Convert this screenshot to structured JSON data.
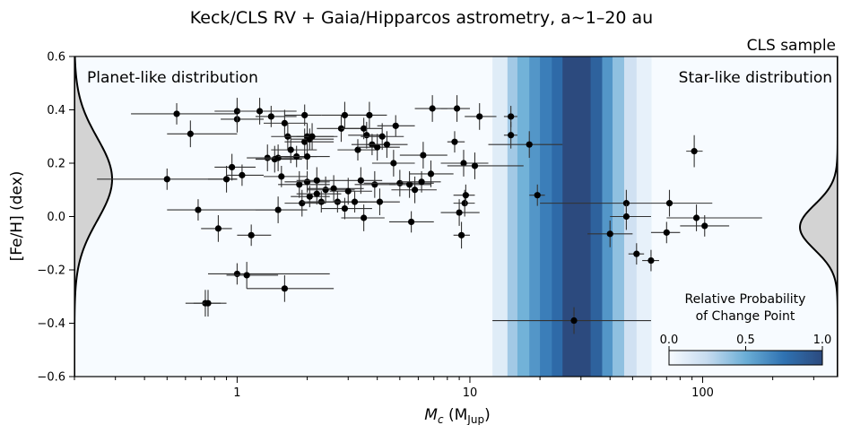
{
  "chart_data": {
    "type": "scatter",
    "title": "Keck/CLS RV + Gaia/Hipparcos astrometry, a∼1–20 au",
    "subtitle": "CLS sample",
    "xlabel_main": "M",
    "xlabel_sub": "c",
    "xlabel_unit_open": " (M",
    "xlabel_unit_sub": "Jup",
    "xlabel_unit_close": ")",
    "ylabel": "[Fe/H] (dex)",
    "xscale": "log",
    "xlim": [
      0.2,
      380
    ],
    "ylim": [
      -0.6,
      0.6
    ],
    "x_ticks": [
      {
        "value": 1,
        "label": "1"
      },
      {
        "value": 10,
        "label": "10"
      },
      {
        "value": 100,
        "label": "100"
      }
    ],
    "y_ticks": [
      {
        "value": 0.6,
        "label": "0.6"
      },
      {
        "value": 0.4,
        "label": "0.4"
      },
      {
        "value": 0.2,
        "label": "0.2"
      },
      {
        "value": 0.0,
        "label": "0.0"
      },
      {
        "value": -0.2,
        "label": "−0.2"
      },
      {
        "value": -0.4,
        "label": "−0.4"
      },
      {
        "value": -0.6,
        "label": "−0.6"
      }
    ],
    "annotations": {
      "left": "Planet-like distribution",
      "right": "Star-like distribution"
    },
    "colorbar": {
      "title_line1": "Relative Probability",
      "title_line2": "of Change Point",
      "ticks": [
        {
          "value": 0.0,
          "label": "0.0"
        },
        {
          "value": 0.5,
          "label": "0.5"
        },
        {
          "value": 1.0,
          "label": "1.0"
        }
      ]
    },
    "change_point_probability": [
      {
        "x0": 12.5,
        "x1": 14.5,
        "p": 0.12
      },
      {
        "x0": 14.5,
        "x1": 16.0,
        "p": 0.35
      },
      {
        "x0": 16.0,
        "x1": 18.0,
        "p": 0.48
      },
      {
        "x0": 18.0,
        "x1": 20.0,
        "p": 0.6
      },
      {
        "x0": 20.0,
        "x1": 22.5,
        "p": 0.7
      },
      {
        "x0": 22.5,
        "x1": 25.0,
        "p": 0.8
      },
      {
        "x0": 25.0,
        "x1": 33.0,
        "p": 1.0
      },
      {
        "x0": 33.0,
        "x1": 37.0,
        "p": 0.85
      },
      {
        "x0": 37.0,
        "x1": 41.0,
        "p": 0.6
      },
      {
        "x0": 41.0,
        "x1": 46.0,
        "p": 0.4
      },
      {
        "x0": 46.0,
        "x1": 52.0,
        "p": 0.2
      },
      {
        "x0": 52.0,
        "x1": 60.0,
        "p": 0.08
      }
    ],
    "distributions": [
      {
        "side": "left",
        "name": "Planet-like distribution",
        "mean": 0.14,
        "sigma": 0.155
      },
      {
        "side": "right",
        "name": "Star-like distribution",
        "mean": -0.04,
        "sigma": 0.085
      }
    ],
    "points": [
      {
        "x": 0.5,
        "y": 0.14,
        "xlo": 0.25,
        "xhi": 1.0,
        "ye": 0.04
      },
      {
        "x": 0.55,
        "y": 0.385,
        "xlo": 0.35,
        "xhi": 1.0,
        "ye": 0.04
      },
      {
        "x": 0.63,
        "y": 0.31,
        "xlo": 0.5,
        "xhi": 1.0,
        "ye": 0.05
      },
      {
        "x": 0.68,
        "y": 0.025,
        "xlo": 0.5,
        "xhi": 1.5,
        "ye": 0.04
      },
      {
        "x": 0.73,
        "y": -0.325,
        "xlo": 0.6,
        "xhi": 0.85,
        "ye": 0.05
      },
      {
        "x": 0.75,
        "y": -0.325,
        "xlo": 0.65,
        "xhi": 0.9,
        "ye": 0.05
      },
      {
        "x": 0.83,
        "y": -0.045,
        "xlo": 0.7,
        "xhi": 0.95,
        "ye": 0.05
      },
      {
        "x": 0.9,
        "y": 0.14,
        "xlo": 0.75,
        "xhi": 1.0,
        "ye": 0.05
      },
      {
        "x": 0.95,
        "y": 0.185,
        "xlo": 0.8,
        "xhi": 1.2,
        "ye": 0.05
      },
      {
        "x": 1.0,
        "y": 0.365,
        "xlo": 0.85,
        "xhi": 1.3,
        "ye": 0.05
      },
      {
        "x": 1.0,
        "y": 0.395,
        "xlo": 0.8,
        "xhi": 1.6,
        "ye": 0.05
      },
      {
        "x": 1.0,
        "y": -0.215,
        "xlo": 0.75,
        "xhi": 2.5,
        "ye": 0.04
      },
      {
        "x": 1.05,
        "y": 0.155,
        "xlo": 0.9,
        "xhi": 1.3,
        "ye": 0.04
      },
      {
        "x": 1.1,
        "y": -0.22,
        "xlo": 0.9,
        "xhi": 1.5,
        "ye": 0.05
      },
      {
        "x": 1.15,
        "y": -0.07,
        "xlo": 1.0,
        "xhi": 1.4,
        "ye": 0.04
      },
      {
        "x": 1.25,
        "y": 0.395,
        "xlo": 1.0,
        "xhi": 1.8,
        "ye": 0.05
      },
      {
        "x": 1.35,
        "y": 0.22,
        "xlo": 1.1,
        "xhi": 1.8,
        "ye": 0.05
      },
      {
        "x": 1.4,
        "y": 0.375,
        "xlo": 1.2,
        "xhi": 1.8,
        "ye": 0.04
      },
      {
        "x": 1.45,
        "y": 0.215,
        "xlo": 1.2,
        "xhi": 1.9,
        "ye": 0.05
      },
      {
        "x": 1.5,
        "y": 0.22,
        "xlo": 1.2,
        "xhi": 2.0,
        "ye": 0.05
      },
      {
        "x": 1.5,
        "y": 0.025,
        "xlo": 1.2,
        "xhi": 2.0,
        "ye": 0.05
      },
      {
        "x": 1.55,
        "y": 0.15,
        "xlo": 1.3,
        "xhi": 2.0,
        "ye": 0.04
      },
      {
        "x": 1.6,
        "y": 0.35,
        "xlo": 1.3,
        "xhi": 2.0,
        "ye": 0.05
      },
      {
        "x": 1.6,
        "y": -0.27,
        "xlo": 1.1,
        "xhi": 2.6,
        "ye": 0.05
      },
      {
        "x": 1.65,
        "y": 0.3,
        "xlo": 1.4,
        "xhi": 2.0,
        "ye": 0.05
      },
      {
        "x": 1.7,
        "y": 0.25,
        "xlo": 1.4,
        "xhi": 2.2,
        "ye": 0.05
      },
      {
        "x": 1.8,
        "y": 0.225,
        "xlo": 1.5,
        "xhi": 2.2,
        "ye": 0.04
      },
      {
        "x": 1.85,
        "y": 0.12,
        "xlo": 1.5,
        "xhi": 2.5,
        "ye": 0.05
      },
      {
        "x": 1.9,
        "y": 0.05,
        "xlo": 1.6,
        "xhi": 2.4,
        "ye": 0.05
      },
      {
        "x": 1.95,
        "y": 0.28,
        "xlo": 1.6,
        "xhi": 2.6,
        "ye": 0.05
      },
      {
        "x": 1.95,
        "y": 0.38,
        "xlo": 1.6,
        "xhi": 2.3,
        "ye": 0.04
      },
      {
        "x": 2.0,
        "y": 0.3,
        "xlo": 1.6,
        "xhi": 2.6,
        "ye": 0.05
      },
      {
        "x": 2.0,
        "y": 0.225,
        "xlo": 1.6,
        "xhi": 2.5,
        "ye": 0.05
      },
      {
        "x": 2.0,
        "y": 0.13,
        "xlo": 1.6,
        "xhi": 2.5,
        "ye": 0.04
      },
      {
        "x": 2.05,
        "y": 0.29,
        "xlo": 1.7,
        "xhi": 2.6,
        "ye": 0.04
      },
      {
        "x": 2.05,
        "y": 0.075,
        "xlo": 1.7,
        "xhi": 2.5,
        "ye": 0.04
      },
      {
        "x": 2.1,
        "y": 0.3,
        "xlo": 1.8,
        "xhi": 2.7,
        "ye": 0.05
      },
      {
        "x": 2.2,
        "y": 0.135,
        "xlo": 1.8,
        "xhi": 2.8,
        "ye": 0.05
      },
      {
        "x": 2.2,
        "y": 0.085,
        "xlo": 1.8,
        "xhi": 2.8,
        "ye": 0.04
      },
      {
        "x": 2.3,
        "y": 0.055,
        "xlo": 1.9,
        "xhi": 3.0,
        "ye": 0.04
      },
      {
        "x": 2.4,
        "y": 0.1,
        "xlo": 2.0,
        "xhi": 3.2,
        "ye": 0.05
      },
      {
        "x": 2.6,
        "y": 0.105,
        "xlo": 2.0,
        "xhi": 3.5,
        "ye": 0.05
      },
      {
        "x": 2.7,
        "y": 0.055,
        "xlo": 2.0,
        "xhi": 3.6,
        "ye": 0.04
      },
      {
        "x": 2.8,
        "y": 0.33,
        "xlo": 2.2,
        "xhi": 3.6,
        "ye": 0.05
      },
      {
        "x": 2.9,
        "y": 0.03,
        "xlo": 2.3,
        "xhi": 3.8,
        "ye": 0.04
      },
      {
        "x": 2.9,
        "y": 0.38,
        "xlo": 2.3,
        "xhi": 3.6,
        "ye": 0.05
      },
      {
        "x": 3.0,
        "y": 0.095,
        "xlo": 2.5,
        "xhi": 3.8,
        "ye": 0.05
      },
      {
        "x": 3.2,
        "y": 0.055,
        "xlo": 2.6,
        "xhi": 4.0,
        "ye": 0.04
      },
      {
        "x": 3.3,
        "y": 0.25,
        "xlo": 2.7,
        "xhi": 4.0,
        "ye": 0.04
      },
      {
        "x": 3.4,
        "y": 0.135,
        "xlo": 2.8,
        "xhi": 4.2,
        "ye": 0.05
      },
      {
        "x": 3.5,
        "y": 0.33,
        "xlo": 2.8,
        "xhi": 4.2,
        "ye": 0.04
      },
      {
        "x": 3.5,
        "y": -0.005,
        "xlo": 2.8,
        "xhi": 4.3,
        "ye": 0.05
      },
      {
        "x": 3.6,
        "y": 0.305,
        "xlo": 3.0,
        "xhi": 4.3,
        "ye": 0.05
      },
      {
        "x": 3.7,
        "y": 0.38,
        "xlo": 3.0,
        "xhi": 4.4,
        "ye": 0.05
      },
      {
        "x": 3.8,
        "y": 0.27,
        "xlo": 3.1,
        "xhi": 4.5,
        "ye": 0.04
      },
      {
        "x": 3.9,
        "y": 0.12,
        "xlo": 3.2,
        "xhi": 4.8,
        "ye": 0.05
      },
      {
        "x": 4.0,
        "y": 0.26,
        "xlo": 3.3,
        "xhi": 5.0,
        "ye": 0.05
      },
      {
        "x": 4.1,
        "y": 0.055,
        "xlo": 3.3,
        "xhi": 5.0,
        "ye": 0.05
      },
      {
        "x": 4.2,
        "y": 0.3,
        "xlo": 3.4,
        "xhi": 5.2,
        "ye": 0.05
      },
      {
        "x": 4.4,
        "y": 0.27,
        "xlo": 3.6,
        "xhi": 5.4,
        "ye": 0.05
      },
      {
        "x": 4.7,
        "y": 0.2,
        "xlo": 3.8,
        "xhi": 5.8,
        "ye": 0.05
      },
      {
        "x": 4.8,
        "y": 0.34,
        "xlo": 4.0,
        "xhi": 5.8,
        "ye": 0.04
      },
      {
        "x": 5.0,
        "y": 0.125,
        "xlo": 3.5,
        "xhi": 7.0,
        "ye": 0.05
      },
      {
        "x": 5.5,
        "y": 0.12,
        "xlo": 4.5,
        "xhi": 6.8,
        "ye": 0.05
      },
      {
        "x": 5.6,
        "y": -0.02,
        "xlo": 4.5,
        "xhi": 7.0,
        "ye": 0.04
      },
      {
        "x": 5.8,
        "y": 0.1,
        "xlo": 4.6,
        "xhi": 7.2,
        "ye": 0.05
      },
      {
        "x": 6.2,
        "y": 0.13,
        "xlo": 5.0,
        "xhi": 7.5,
        "ye": 0.04
      },
      {
        "x": 6.3,
        "y": 0.23,
        "xlo": 5.0,
        "xhi": 8.0,
        "ye": 0.05
      },
      {
        "x": 6.8,
        "y": 0.16,
        "xlo": 5.5,
        "xhi": 8.5,
        "ye": 0.05
      },
      {
        "x": 6.9,
        "y": 0.405,
        "xlo": 5.8,
        "xhi": 8.0,
        "ye": 0.05
      },
      {
        "x": 8.6,
        "y": 0.28,
        "xlo": 8.0,
        "xhi": 9.5,
        "ye": 0.04
      },
      {
        "x": 8.8,
        "y": 0.405,
        "xlo": 7.5,
        "xhi": 10.0,
        "ye": 0.05
      },
      {
        "x": 9.0,
        "y": 0.015,
        "xlo": 7.5,
        "xhi": 11.0,
        "ye": 0.05
      },
      {
        "x": 9.2,
        "y": -0.07,
        "xlo": 8.5,
        "xhi": 10.0,
        "ye": 0.05
      },
      {
        "x": 9.4,
        "y": 0.2,
        "xlo": 7.5,
        "xhi": 12.0,
        "ye": 0.05
      },
      {
        "x": 9.5,
        "y": 0.05,
        "xlo": 8.5,
        "xhi": 10.5,
        "ye": 0.05
      },
      {
        "x": 9.6,
        "y": 0.08,
        "xlo": 8.5,
        "xhi": 10.5,
        "ye": 0.04
      },
      {
        "x": 10.5,
        "y": 0.19,
        "xlo": 8.0,
        "xhi": 17.0,
        "ye": 0.05
      },
      {
        "x": 11.0,
        "y": 0.375,
        "xlo": 9.5,
        "xhi": 13.0,
        "ye": 0.05
      },
      {
        "x": 15.0,
        "y": 0.305,
        "xlo": 14.0,
        "xhi": 16.0,
        "ye": 0.05
      },
      {
        "x": 15.0,
        "y": 0.375,
        "xlo": 14.0,
        "xhi": 16.0,
        "ye": 0.04
      },
      {
        "x": 18.0,
        "y": 0.27,
        "xlo": 12.0,
        "xhi": 25.0,
        "ye": 0.05
      },
      {
        "x": 19.5,
        "y": 0.08,
        "xlo": 18.0,
        "xhi": 21.0,
        "ye": 0.04
      },
      {
        "x": 28.0,
        "y": -0.39,
        "xlo": 12.5,
        "xhi": 60.0,
        "ye": 0.05
      },
      {
        "x": 40.0,
        "y": -0.065,
        "xlo": 32.0,
        "xhi": 50.0,
        "ye": 0.05
      },
      {
        "x": 47.0,
        "y": 0.05,
        "xlo": 20.0,
        "xhi": 60.0,
        "ye": 0.05
      },
      {
        "x": 47.0,
        "y": 0.0,
        "xlo": 40.0,
        "xhi": 60.0,
        "ye": 0.05
      },
      {
        "x": 52.0,
        "y": -0.14,
        "xlo": 48.0,
        "xhi": 56.0,
        "ye": 0.04
      },
      {
        "x": 60.0,
        "y": -0.165,
        "xlo": 55.0,
        "xhi": 65.0,
        "ye": 0.04
      },
      {
        "x": 70.0,
        "y": -0.06,
        "xlo": 60.0,
        "xhi": 80.0,
        "ye": 0.04
      },
      {
        "x": 72.0,
        "y": 0.05,
        "xlo": 60.0,
        "xhi": 110.0,
        "ye": 0.05
      },
      {
        "x": 92.0,
        "y": 0.245,
        "xlo": 85.0,
        "xhi": 100.0,
        "ye": 0.06
      },
      {
        "x": 94.0,
        "y": -0.005,
        "xlo": 70.0,
        "xhi": 180.0,
        "ye": 0.05
      },
      {
        "x": 102.0,
        "y": -0.035,
        "xlo": 80.0,
        "xhi": 130.0,
        "ye": 0.04
      }
    ]
  }
}
